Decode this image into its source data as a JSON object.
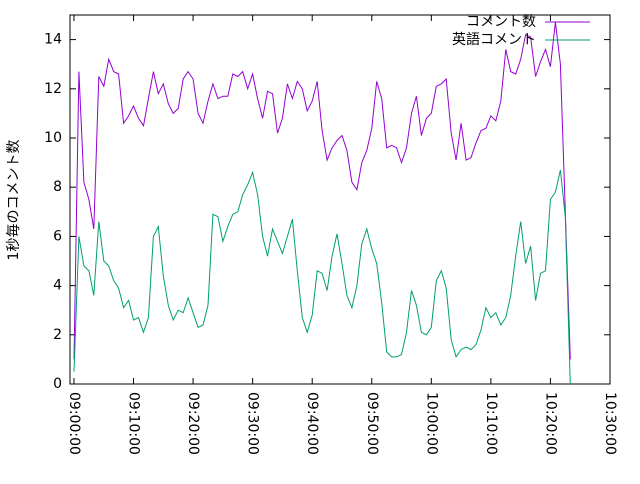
{
  "chart_data": {
    "type": "line",
    "ylabel": "1秒毎のコメント数",
    "x": [
      "09:00:00",
      "09:00:50",
      "09:01:40",
      "09:02:30",
      "09:03:20",
      "09:04:10",
      "09:05:00",
      "09:05:50",
      "09:06:40",
      "09:07:30",
      "09:08:20",
      "09:09:10",
      "09:10:00",
      "09:10:50",
      "09:11:40",
      "09:12:30",
      "09:13:20",
      "09:14:10",
      "09:15:00",
      "09:15:50",
      "09:16:40",
      "09:17:30",
      "09:18:20",
      "09:19:10",
      "09:20:00",
      "09:20:50",
      "09:21:40",
      "09:22:30",
      "09:23:20",
      "09:24:10",
      "09:25:00",
      "09:25:50",
      "09:26:40",
      "09:27:30",
      "09:28:20",
      "09:29:10",
      "09:30:00",
      "09:30:50",
      "09:31:40",
      "09:32:30",
      "09:33:20",
      "09:34:10",
      "09:35:00",
      "09:35:50",
      "09:36:40",
      "09:37:30",
      "09:38:20",
      "09:39:10",
      "09:40:00",
      "09:40:50",
      "09:41:40",
      "09:42:30",
      "09:43:20",
      "09:44:10",
      "09:45:00",
      "09:45:50",
      "09:46:40",
      "09:47:30",
      "09:48:20",
      "09:49:10",
      "09:50:00",
      "09:50:50",
      "09:51:40",
      "09:52:30",
      "09:53:20",
      "09:54:10",
      "09:55:00",
      "09:55:50",
      "09:56:40",
      "09:57:30",
      "09:58:20",
      "09:59:10",
      "10:00:00",
      "10:00:50",
      "10:01:40",
      "10:02:30",
      "10:03:20",
      "10:04:10",
      "10:05:00",
      "10:05:50",
      "10:06:40",
      "10:07:30",
      "10:08:20",
      "10:09:10",
      "10:10:00",
      "10:10:50",
      "10:11:40",
      "10:12:30",
      "10:13:20",
      "10:14:10",
      "10:15:00",
      "10:15:50",
      "10:16:40",
      "10:17:30",
      "10:18:20",
      "10:19:10",
      "10:20:00",
      "10:20:50",
      "10:21:40",
      "10:22:30",
      "10:23:20"
    ],
    "series": [
      {
        "name": "コメント数",
        "color": "#9400d3",
        "values": [
          1,
          12.7,
          8.2,
          7.5,
          6.3,
          12.5,
          12.1,
          13.2,
          12.7,
          12.6,
          10.6,
          10.9,
          11.3,
          10.8,
          10.5,
          11.6,
          12.7,
          11.8,
          12.2,
          11.4,
          11,
          11.2,
          12.4,
          12.7,
          12.4,
          11,
          10.6,
          11.5,
          12.2,
          11.6,
          11.7,
          11.7,
          12.6,
          12.5,
          12.7,
          12,
          12.6,
          11.6,
          10.8,
          11.9,
          11.8,
          10.2,
          10.8,
          12.2,
          11.6,
          12.3,
          12,
          11.1,
          11.5,
          12.3,
          10.3,
          9.1,
          9.6,
          9.9,
          10.1,
          9.5,
          8.2,
          7.9,
          9,
          9.5,
          10.4,
          12.3,
          11.6,
          9.6,
          9.7,
          9.6,
          9,
          9.6,
          11,
          11.7,
          10.1,
          10.8,
          11,
          12.1,
          12.2,
          12.4,
          10.2,
          9.1,
          10.6,
          9.1,
          9.2,
          9.8,
          10.3,
          10.4,
          10.9,
          10.7,
          11.5,
          13.6,
          12.7,
          12.6,
          13.2,
          14.2,
          14.1,
          12.5,
          13.1,
          13.6,
          12.9,
          14.7,
          13,
          7,
          1
        ]
      },
      {
        "name": "英語コメント",
        "color": "#009e73",
        "values": [
          0.5,
          6,
          4.8,
          4.6,
          3.6,
          6.6,
          5,
          4.8,
          4.2,
          3.9,
          3.1,
          3.4,
          2.6,
          2.7,
          2.1,
          2.7,
          6,
          6.4,
          4.4,
          3.2,
          2.6,
          3,
          2.9,
          3.5,
          2.9,
          2.3,
          2.4,
          3.2,
          6.9,
          6.8,
          5.8,
          6.4,
          6.9,
          7,
          7.7,
          8.1,
          8.6,
          7.7,
          6,
          5.2,
          6.3,
          5.8,
          5.3,
          6,
          6.7,
          4.6,
          2.7,
          2.1,
          2.8,
          4.6,
          4.5,
          3.8,
          5.2,
          6.1,
          4.9,
          3.6,
          3.1,
          4,
          5.7,
          6.3,
          5.5,
          4.9,
          3.3,
          1.3,
          1.1,
          1.1,
          1.2,
          2.1,
          3.8,
          3.2,
          2.1,
          2,
          2.3,
          4.2,
          4.6,
          3.9,
          1.8,
          1.1,
          1.4,
          1.5,
          1.4,
          1.6,
          2.2,
          3.1,
          2.7,
          2.9,
          2.4,
          2.7,
          3.6,
          5.2,
          6.6,
          4.9,
          5.6,
          3.4,
          4.5,
          4.6,
          7.5,
          7.8,
          8.7,
          6.8,
          0
        ]
      }
    ],
    "xlim": [
      "08:59:20",
      "10:30:00"
    ],
    "xticks": [
      "09:00:00",
      "09:10:00",
      "09:20:00",
      "09:30:00",
      "09:40:00",
      "09:50:00",
      "10:00:00",
      "10:10:00",
      "10:20:00",
      "10:30:00"
    ],
    "ylim": [
      0,
      15
    ],
    "yticks": [
      0,
      2,
      4,
      6,
      8,
      10,
      12,
      14
    ],
    "legend": "top-right"
  }
}
